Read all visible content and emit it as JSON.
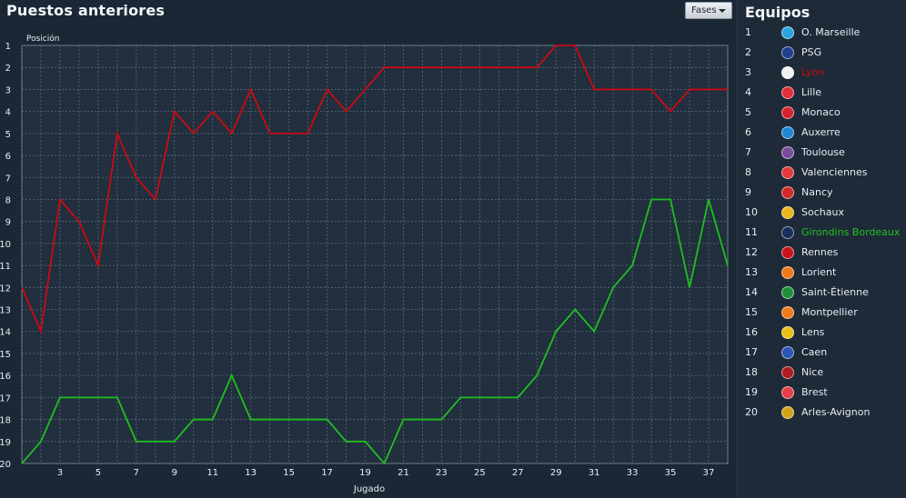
{
  "header": {
    "title": "Puestos anteriores",
    "fases_label": "Fases"
  },
  "sidebar": {
    "title": "Equipos",
    "teams": [
      {
        "rank": "1",
        "name": "O. Marseille",
        "badge_color": "#2aa5e0",
        "name_color": "#e8edf2",
        "icon": "marseille-badge-icon"
      },
      {
        "rank": "2",
        "name": "PSG",
        "badge_color": "#1f3f8c",
        "name_color": "#e8edf2",
        "icon": "psg-badge-icon"
      },
      {
        "rank": "3",
        "name": "Lyon",
        "badge_color": "#f1f1f1",
        "name_color": "#cc0a12",
        "icon": "lyon-badge-icon"
      },
      {
        "rank": "4",
        "name": "Lille",
        "badge_color": "#e0303a",
        "name_color": "#e8edf2",
        "icon": "lille-badge-icon"
      },
      {
        "rank": "5",
        "name": "Monaco",
        "badge_color": "#d9232e",
        "name_color": "#e8edf2",
        "icon": "monaco-badge-icon"
      },
      {
        "rank": "6",
        "name": "Auxerre",
        "badge_color": "#2388d4",
        "name_color": "#e8edf2",
        "icon": "auxerre-badge-icon"
      },
      {
        "rank": "7",
        "name": "Toulouse",
        "badge_color": "#7b4b9e",
        "name_color": "#e8edf2",
        "icon": "toulouse-badge-icon"
      },
      {
        "rank": "8",
        "name": "Valenciennes",
        "badge_color": "#e23b3b",
        "name_color": "#e8edf2",
        "icon": "valenciennes-badge-icon"
      },
      {
        "rank": "9",
        "name": "Nancy",
        "badge_color": "#d42a2a",
        "name_color": "#e8edf2",
        "icon": "nancy-badge-icon"
      },
      {
        "rank": "10",
        "name": "Sochaux",
        "badge_color": "#e8b71b",
        "name_color": "#e8edf2",
        "icon": "sochaux-badge-icon"
      },
      {
        "rank": "11",
        "name": "Girondins Bordeaux",
        "badge_color": "#1a2c5a",
        "name_color": "#22c022",
        "icon": "bordeaux-badge-icon"
      },
      {
        "rank": "12",
        "name": "Rennes",
        "badge_color": "#c8151b",
        "name_color": "#e8edf2",
        "icon": "rennes-badge-icon"
      },
      {
        "rank": "13",
        "name": "Lorient",
        "badge_color": "#f07a1a",
        "name_color": "#e8edf2",
        "icon": "lorient-badge-icon"
      },
      {
        "rank": "14",
        "name": "Saint-Étienne",
        "badge_color": "#1f8f3a",
        "name_color": "#e8edf2",
        "icon": "saint-etienne-badge-icon"
      },
      {
        "rank": "15",
        "name": "Montpellier",
        "badge_color": "#f07d1a",
        "name_color": "#e8edf2",
        "icon": "montpellier-badge-icon"
      },
      {
        "rank": "16",
        "name": "Lens",
        "badge_color": "#e8c21b",
        "name_color": "#e8edf2",
        "icon": "lens-badge-icon"
      },
      {
        "rank": "17",
        "name": "Caen",
        "badge_color": "#2a55b0",
        "name_color": "#e8edf2",
        "icon": "caen-badge-icon"
      },
      {
        "rank": "18",
        "name": "Nice",
        "badge_color": "#b01b22",
        "name_color": "#e8edf2",
        "icon": "nice-badge-icon"
      },
      {
        "rank": "19",
        "name": "Brest",
        "badge_color": "#e6404a",
        "name_color": "#e8edf2",
        "icon": "brest-badge-icon"
      },
      {
        "rank": "20",
        "name": "Arles-Avignon",
        "badge_color": "#d4a21b",
        "name_color": "#e8edf2",
        "icon": "arles-avignon-badge-icon"
      }
    ]
  },
  "chart_data": {
    "type": "line",
    "title": "",
    "xlabel": "Jugado",
    "ylabel": "Posición",
    "x_range": [
      1,
      38
    ],
    "y_range": [
      1,
      20
    ],
    "y_inverted": true,
    "grid": true,
    "x_tick_labels": [
      "3",
      "5",
      "7",
      "9",
      "11",
      "13",
      "15",
      "17",
      "19",
      "21",
      "23",
      "25",
      "27",
      "29",
      "31",
      "33",
      "35",
      "37"
    ],
    "y_tick_labels": [
      "1",
      "2",
      "3",
      "4",
      "5",
      "6",
      "7",
      "8",
      "9",
      "10",
      "11",
      "12",
      "13",
      "14",
      "15",
      "16",
      "17",
      "18",
      "19",
      "20"
    ],
    "series": [
      {
        "name": "Lyon",
        "color": "#cc0a12",
        "values": [
          12,
          14,
          8,
          9,
          11,
          5,
          7,
          8,
          4,
          5,
          4,
          5,
          3,
          5,
          5,
          5,
          3,
          4,
          3,
          2,
          2,
          2,
          2,
          2,
          2,
          2,
          2,
          2,
          1,
          1,
          3,
          3,
          3,
          3,
          4,
          3,
          3,
          3
        ]
      },
      {
        "name": "Girondins Bordeaux",
        "color": "#1fbf1f",
        "values": [
          20,
          19,
          17,
          17,
          17,
          17,
          19,
          19,
          19,
          18,
          18,
          16,
          18,
          18,
          18,
          18,
          18,
          19,
          19,
          20,
          18,
          18,
          18,
          17,
          17,
          17,
          17,
          16,
          14,
          13,
          14,
          12,
          11,
          8,
          8,
          12,
          8,
          11
        ]
      }
    ]
  }
}
